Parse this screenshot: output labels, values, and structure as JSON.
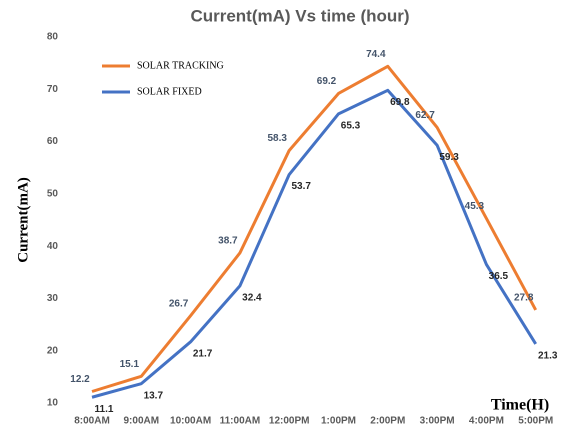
{
  "chart_data": {
    "type": "line",
    "title": "Current(mA) Vs time (hour)",
    "ylabel": "Current(mA)",
    "xlabel": "Time(H)",
    "categories": [
      "8:00AM",
      "9:00AM",
      "10:00AM",
      "11:00AM",
      "12:00PM",
      "1:00PM",
      "2:00PM",
      "3:00PM",
      "4:00PM",
      "5:00PM"
    ],
    "series": [
      {
        "name": "SOLAR TRACKING",
        "color": "#ed7d31",
        "values": [
          12.2,
          15.1,
          26.7,
          38.7,
          58.3,
          69.2,
          74.4,
          62.7,
          45.3,
          27.8
        ]
      },
      {
        "name": "SOLAR FIXED",
        "color": "#4472c4",
        "values": [
          11.1,
          13.7,
          21.7,
          32.4,
          53.7,
          65.3,
          69.8,
          59.3,
          36.5,
          21.3
        ]
      }
    ],
    "ylim": [
      10,
      80
    ],
    "yticks": [
      10,
      20,
      30,
      40,
      50,
      60,
      70,
      80
    ],
    "grid": false,
    "legend": "upper left"
  }
}
